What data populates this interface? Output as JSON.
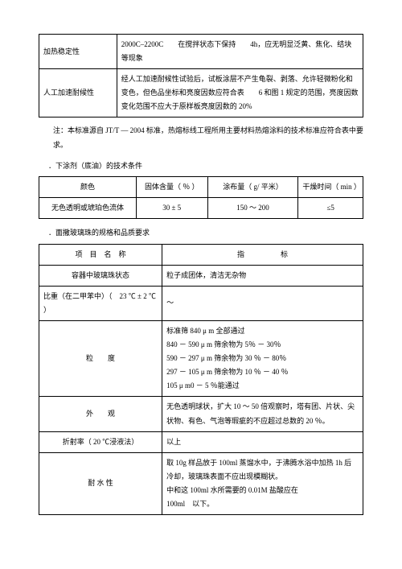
{
  "table1": {
    "rows": [
      {
        "label": "加热稳定性",
        "content": "2000C–2200C　　在搅拌状态下保持　　4h，应无明显泛黄、焦化、结块等现象"
      },
      {
        "label": "人工加速耐候性",
        "content": "经人工加速耐候性试验后，试板涂层不产生龟裂、剥落、允许轻微粉化和变色，但色品坐标和亮度因数应符合表　　6 和图 1 规定的范围，亮度因数变化范围不应大于原样板亮度因数的 20%"
      }
    ]
  },
  "note1": "注：本标准源自 JT/T — 2004 标准，热熔标线工程所用主要材料热熔涂料的技术标准应符合表中要求。",
  "subhead2": "．下涂剂（底油）的技术条件",
  "table2": {
    "headers": [
      "颜色",
      "固体含量（ ％ ）",
      "涂布量（ g/ 平米）",
      "干燥时间（ min ）"
    ],
    "row": [
      "无色透明或琥珀色流体",
      "30 ± 5",
      "150 ～ 200",
      "≤5"
    ]
  },
  "subhead3": "．面撒玻璃珠的规格和品质要求",
  "table3": {
    "header_left": "项　目　名　称",
    "header_right": "指　　　　　标",
    "rows": [
      {
        "left": "容器中玻璃珠状态",
        "right": "粒子成团体，清洁无杂物"
      },
      {
        "left": "比重（在二甲苯中）（　23 ℃ ± 2 ℃ ）",
        "right": "～"
      },
      {
        "left": "粒　　度",
        "right_lines": [
          "标准筛 840 μ m 全部通过",
          "840 － 590 μ m 筛余物为 5％ － 30％",
          "590 － 297 μ m 筛余物为 30 ％ － 80％",
          "297 － 105 μ m 筛余物为 10 ％ － 40 ％",
          "105 μ m0 － 5 ％能通过"
        ]
      },
      {
        "left": "外　　观",
        "right": "无色透明球状，扩大 10 ～ 50 倍观察时，塔有团、片状、尖状物、有色、气泡等瑕疵的不应超过总数的 20 ％。"
      },
      {
        "left": "折射率（ 20 ℃浸液法）",
        "right": "以上"
      },
      {
        "left": "耐 水 性",
        "right_lines": [
          "取 10g 样品放于 100ml 蒸馏水中，于沸腾水浴中加热 1h 后冷却，玻璃珠表面不应出现模糊状。",
          "中和这 100ml 水所需要的 0.01M 盐酸应在",
          "100ml　以下。"
        ]
      }
    ]
  }
}
